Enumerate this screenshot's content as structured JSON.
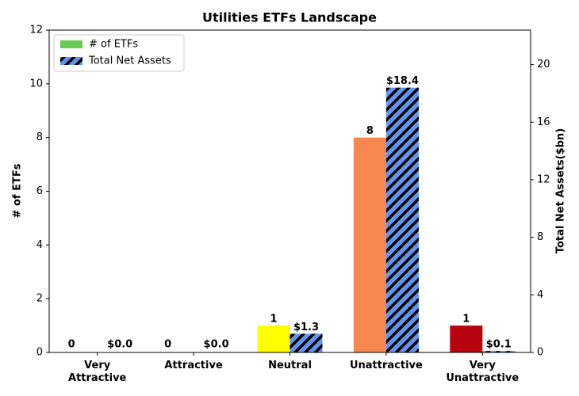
{
  "chart_data": {
    "type": "bar",
    "title": "Utilities ETFs Landscape",
    "categories": [
      "Very Attractive",
      "Attractive",
      "Neutral",
      "Unattractive",
      "Very Unattractive"
    ],
    "series": [
      {
        "name": "# of ETFs",
        "color": "#66cc55",
        "bar_colors": [
          "#66cc55",
          "#66cc55",
          "#ffff00",
          "#f5874f",
          "#b8040f"
        ],
        "values": [
          0,
          0,
          1,
          8,
          1
        ]
      },
      {
        "name": "Total Net Assets",
        "color": "#6495ed",
        "hatch": true,
        "axis": "y2",
        "values": [
          0,
          0,
          1.3,
          18.4,
          0.1
        ],
        "value_labels": [
          "$0.0",
          "$0.0",
          "$1.3",
          "$18.4",
          "$0.1"
        ]
      }
    ],
    "ylabel": "# of ETFs",
    "y2label": "Total Net Assets($bn)",
    "ylim": [
      0,
      12
    ],
    "yticks": [
      0,
      2,
      4,
      6,
      8,
      10,
      12
    ],
    "y2lim": [
      0,
      22.4
    ],
    "y2ticks": [
      0,
      4,
      8,
      12,
      16,
      20
    ],
    "legend": "upper left"
  }
}
